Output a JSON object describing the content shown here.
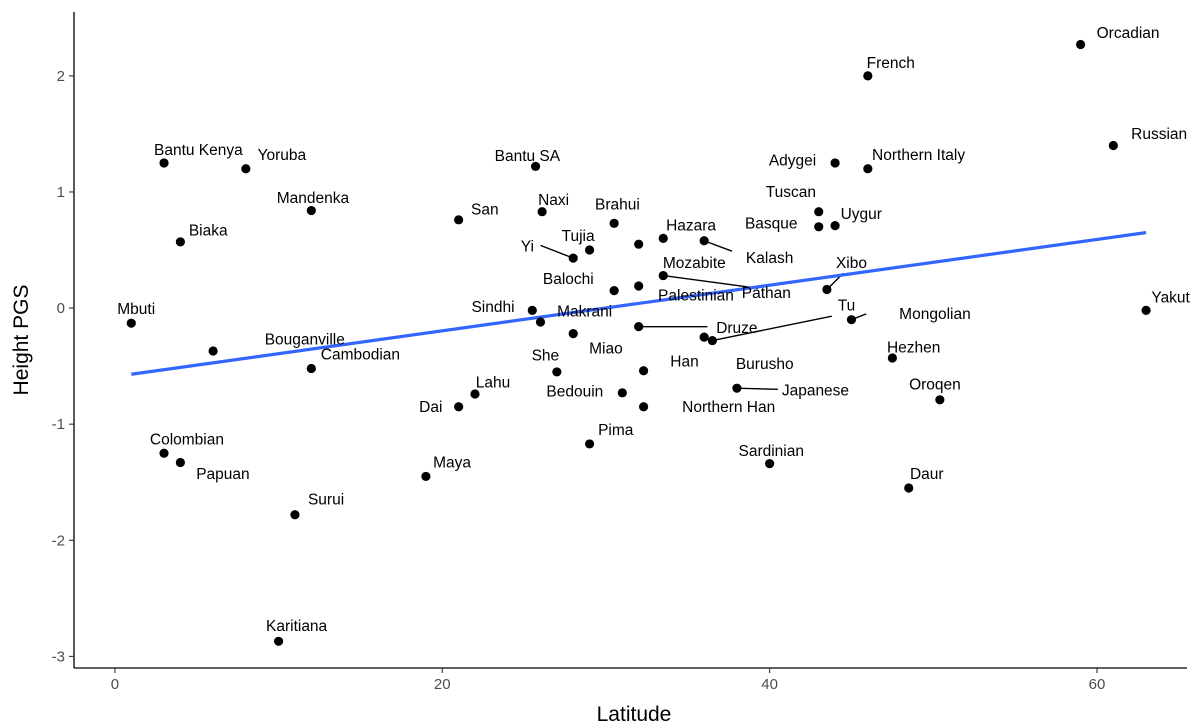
{
  "chart_data": {
    "type": "scatter",
    "xlabel": "Latitude",
    "ylabel": "Height PGS",
    "xlim": [
      -2.5,
      65.5
    ],
    "ylim": [
      -3.1,
      2.55
    ],
    "x_ticks": [
      0,
      20,
      40,
      60
    ],
    "x_tick_labels": [
      "0",
      "20",
      "40",
      "60"
    ],
    "y_ticks": [
      -3,
      -2,
      -1,
      0,
      1,
      2
    ],
    "y_tick_labels": [
      "-3",
      "-2",
      "-1",
      "0",
      "1",
      "2"
    ],
    "grid": false,
    "legend": "none",
    "point_color": "#000000",
    "trend_color": "#3366ff",
    "trend_line": {
      "x": [
        1,
        63
      ],
      "y": [
        -0.57,
        0.65
      ]
    },
    "points": [
      {
        "name": "Orcadian",
        "x": 59,
        "y": 2.27
      },
      {
        "name": "French",
        "x": 46,
        "y": 2.0
      },
      {
        "name": "Russian",
        "x": 61,
        "y": 1.4
      },
      {
        "name": "Bantu Kenya",
        "x": 3,
        "y": 1.25
      },
      {
        "name": "Yoruba",
        "x": 8,
        "y": 1.2
      },
      {
        "name": "Bantu SA",
        "x": 25.7,
        "y": 1.22
      },
      {
        "name": "Adygei",
        "x": 44,
        "y": 1.25
      },
      {
        "name": "Northern Italy",
        "x": 46,
        "y": 1.2
      },
      {
        "name": "Mandenka",
        "x": 12,
        "y": 0.84
      },
      {
        "name": "San",
        "x": 21,
        "y": 0.76
      },
      {
        "name": "Naxi",
        "x": 26.1,
        "y": 0.83
      },
      {
        "name": "Brahui",
        "x": 30.5,
        "y": 0.73
      },
      {
        "name": "Tuscan",
        "x": 43,
        "y": 0.83
      },
      {
        "name": "Basque",
        "x": 43,
        "y": 0.7
      },
      {
        "name": "Uygur",
        "x": 44,
        "y": 0.71
      },
      {
        "name": "Biaka",
        "x": 4,
        "y": 0.57
      },
      {
        "name": "Tujia",
        "x": 29,
        "y": 0.5
      },
      {
        "name": "Yi",
        "x": 28,
        "y": 0.43
      },
      {
        "name": "Hazara",
        "x": 33.5,
        "y": 0.6
      },
      {
        "name": "Mozabite",
        "x": 32,
        "y": 0.55
      },
      {
        "name": "Kalash",
        "x": 36,
        "y": 0.58
      },
      {
        "name": "Balochi",
        "x": 30.5,
        "y": 0.15
      },
      {
        "name": "Palestinian",
        "x": 32,
        "y": 0.19
      },
      {
        "name": "Pathan",
        "x": 33.5,
        "y": 0.28
      },
      {
        "name": "Xibo",
        "x": 43.5,
        "y": 0.16
      },
      {
        "name": "Mbuti",
        "x": 1,
        "y": -0.13
      },
      {
        "name": "Sindhi",
        "x": 25.5,
        "y": -0.02
      },
      {
        "name": "Makrani",
        "x": 26,
        "y": -0.12
      },
      {
        "name": "Tu",
        "x": 36.5,
        "y": -0.28
      },
      {
        "name": "Mongolian",
        "x": 45,
        "y": -0.1
      },
      {
        "name": "Yakut",
        "x": 63,
        "y": -0.02
      },
      {
        "name": "Druze",
        "x": 32,
        "y": -0.16
      },
      {
        "name": "Miao",
        "x": 28,
        "y": -0.22
      },
      {
        "name": "Bouganville",
        "x": 6,
        "y": -0.37
      },
      {
        "name": "Cambodian",
        "x": 12,
        "y": -0.52
      },
      {
        "name": "She",
        "x": 27,
        "y": -0.55
      },
      {
        "name": "Han",
        "x": 32.3,
        "y": -0.54
      },
      {
        "name": "Burusho",
        "x": 36,
        "y": -0.25
      },
      {
        "name": "Hezhen",
        "x": 47.5,
        "y": -0.43
      },
      {
        "name": "Lahu",
        "x": 22,
        "y": -0.74
      },
      {
        "name": "Dai",
        "x": 21,
        "y": -0.85
      },
      {
        "name": "Bedouin",
        "x": 31,
        "y": -0.73
      },
      {
        "name": "Northern Han",
        "x": 32.3,
        "y": -0.85
      },
      {
        "name": "Japanese",
        "x": 38,
        "y": -0.69
      },
      {
        "name": "Oroqen",
        "x": 50.4,
        "y": -0.79
      },
      {
        "name": "Pima",
        "x": 29,
        "y": -1.17
      },
      {
        "name": "Colombian",
        "x": 3,
        "y": -1.25
      },
      {
        "name": "Papuan",
        "x": 4,
        "y": -1.33
      },
      {
        "name": "Maya",
        "x": 19,
        "y": -1.45
      },
      {
        "name": "Sardinian",
        "x": 40,
        "y": -1.34
      },
      {
        "name": "Daur",
        "x": 48.5,
        "y": -1.55
      },
      {
        "name": "Surui",
        "x": 11,
        "y": -1.78
      },
      {
        "name": "Karitiana",
        "x": 10,
        "y": -2.87
      }
    ],
    "labels": [
      {
        "text": "Orcadian",
        "x": 61.9,
        "y": 2.37
      },
      {
        "text": "French",
        "x": 47.4,
        "y": 2.11
      },
      {
        "text": "Russian",
        "x": 63.8,
        "y": 1.5
      },
      {
        "text": "Bantu Kenya",
        "x": 5.1,
        "y": 1.36
      },
      {
        "text": "Yoruba",
        "x": 10.2,
        "y": 1.32
      },
      {
        "text": "Bantu SA",
        "x": 25.2,
        "y": 1.31
      },
      {
        "text": "Adygei",
        "x": 41.4,
        "y": 1.27
      },
      {
        "text": "Northern Italy",
        "x": 49.1,
        "y": 1.32
      },
      {
        "text": "Mandenka",
        "x": 12.1,
        "y": 0.95
      },
      {
        "text": "San",
        "x": 22.6,
        "y": 0.85
      },
      {
        "text": "Naxi",
        "x": 26.8,
        "y": 0.93
      },
      {
        "text": "Brahui",
        "x": 30.7,
        "y": 0.89
      },
      {
        "text": "Tuscan",
        "x": 41.3,
        "y": 1.0
      },
      {
        "text": "Basque",
        "x": 40.1,
        "y": 0.73
      },
      {
        "text": "Uygur",
        "x": 45.6,
        "y": 0.81
      },
      {
        "text": "Biaka",
        "x": 5.7,
        "y": 0.67
      },
      {
        "text": "Tujia",
        "x": 28.3,
        "y": 0.62
      },
      {
        "text": "Yi",
        "x": 25.2,
        "y": 0.53
      },
      {
        "text": "Hazara",
        "x": 35.2,
        "y": 0.71
      },
      {
        "text": "Mozabite",
        "x": 35.4,
        "y": 0.39
      },
      {
        "text": "Kalash",
        "x": 40.0,
        "y": 0.43
      },
      {
        "text": "Balochi",
        "x": 27.7,
        "y": 0.25
      },
      {
        "text": "Palestinian",
        "x": 35.5,
        "y": 0.11
      },
      {
        "text": "Pathan",
        "x": 39.8,
        "y": 0.13
      },
      {
        "text": "Xibo",
        "x": 45.0,
        "y": 0.39
      },
      {
        "text": "Mbuti",
        "x": 1.3,
        "y": -0.01
      },
      {
        "text": "Sindhi",
        "x": 23.1,
        "y": 0.01
      },
      {
        "text": "Makrani",
        "x": 28.7,
        "y": -0.03
      },
      {
        "text": "Tu",
        "x": 44.7,
        "y": 0.02
      },
      {
        "text": "Mongolian",
        "x": 50.1,
        "y": -0.05
      },
      {
        "text": "Yakut",
        "x": 64.5,
        "y": 0.09
      },
      {
        "text": "Druze",
        "x": 38.0,
        "y": -0.17
      },
      {
        "text": "Miao",
        "x": 30.0,
        "y": -0.35
      },
      {
        "text": "Bouganville",
        "x": 11.6,
        "y": -0.27
      },
      {
        "text": "Cambodian",
        "x": 15.0,
        "y": -0.4
      },
      {
        "text": "She",
        "x": 26.3,
        "y": -0.41
      },
      {
        "text": "Han",
        "x": 34.8,
        "y": -0.46
      },
      {
        "text": "Burusho",
        "x": 39.7,
        "y": -0.48
      },
      {
        "text": "Hezhen",
        "x": 48.8,
        "y": -0.34
      },
      {
        "text": "Lahu",
        "x": 23.1,
        "y": -0.64
      },
      {
        "text": "Dai",
        "x": 19.3,
        "y": -0.85
      },
      {
        "text": "Bedouin",
        "x": 28.1,
        "y": -0.72
      },
      {
        "text": "Northern Han",
        "x": 37.5,
        "y": -0.85
      },
      {
        "text": "Japanese",
        "x": 42.8,
        "y": -0.71
      },
      {
        "text": "Oroqen",
        "x": 50.1,
        "y": -0.66
      },
      {
        "text": "Pima",
        "x": 30.6,
        "y": -1.05
      },
      {
        "text": "Colombian",
        "x": 4.4,
        "y": -1.13
      },
      {
        "text": "Papuan",
        "x": 6.6,
        "y": -1.43
      },
      {
        "text": "Maya",
        "x": 20.6,
        "y": -1.33
      },
      {
        "text": "Sardinian",
        "x": 40.1,
        "y": -1.23
      },
      {
        "text": "Daur",
        "x": 49.6,
        "y": -1.43
      },
      {
        "text": "Surui",
        "x": 12.9,
        "y": -1.65
      },
      {
        "text": "Karitiana",
        "x": 11.1,
        "y": -2.74
      }
    ],
    "connectors": [
      {
        "x1": 28.0,
        "y1": 0.43,
        "x2": 26.0,
        "y2": 0.54
      },
      {
        "x1": 36.0,
        "y1": 0.58,
        "x2": 37.7,
        "y2": 0.49
      },
      {
        "x1": 33.5,
        "y1": 0.28,
        "x2": 39.3,
        "y2": 0.17
      },
      {
        "x1": 43.5,
        "y1": 0.16,
        "x2": 44.5,
        "y2": 0.3
      },
      {
        "x1": 32.0,
        "y1": -0.16,
        "x2": 36.2,
        "y2": -0.16
      },
      {
        "x1": 36.5,
        "y1": -0.28,
        "x2": 43.8,
        "y2": -0.07
      },
      {
        "x1": 45.0,
        "y1": -0.1,
        "x2": 45.9,
        "y2": -0.05
      },
      {
        "x1": 38.0,
        "y1": -0.69,
        "x2": 40.5,
        "y2": -0.7
      }
    ]
  }
}
